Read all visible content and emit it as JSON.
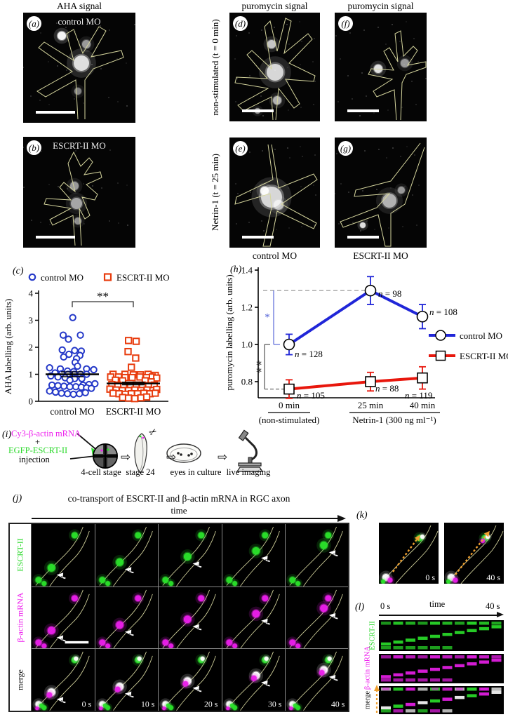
{
  "titles": {
    "aha": "AHA signal",
    "puromycin_left": "puromycin signal",
    "puromycin_right": "puromycin signal"
  },
  "micrographs": {
    "a": {
      "letter": "(a)",
      "label": "control MO"
    },
    "b": {
      "letter": "(b)",
      "label": "ESCRT-II MO"
    },
    "d": {
      "letter": "(d)"
    },
    "e": {
      "letter": "(e)"
    },
    "f": {
      "letter": "(f)"
    },
    "g": {
      "letter": "(g)"
    },
    "row1_label": "non-stimulated (t = 0 min)",
    "row2_label": "Netrin-1  (t = 25 min)",
    "caption_e": "control MO",
    "caption_g": "ESCRT-II MO"
  },
  "chart_data": [
    {
      "id": "c",
      "panel_letter": "(c)",
      "type": "scatter",
      "ylabel": "AHA labelling (arb. units)",
      "ylim": [
        0,
        4
      ],
      "yticks": [
        0,
        1,
        2,
        3,
        4
      ],
      "categories": [
        "control MO",
        "ESCRT-II MO"
      ],
      "significance": {
        "label": "**"
      },
      "series": [
        {
          "name": "control MO",
          "marker": "circle",
          "color": "#2438c8",
          "mean": 1.0,
          "sem": 0.09,
          "points": [
            [
              0.02,
              3.1
            ],
            [
              -0.38,
              2.45
            ],
            [
              0.34,
              2.45
            ],
            [
              -0.16,
              2.3
            ],
            [
              -0.42,
              1.9
            ],
            [
              0.1,
              1.88
            ],
            [
              0.38,
              1.86
            ],
            [
              -0.14,
              1.74
            ],
            [
              0.32,
              1.7
            ],
            [
              -0.36,
              1.64
            ],
            [
              0.18,
              1.58
            ],
            [
              0.12,
              1.44
            ],
            [
              0.22,
              1.3
            ],
            [
              -0.95,
              1.24
            ],
            [
              -0.5,
              1.2
            ],
            [
              0.6,
              1.2
            ],
            [
              0.9,
              1.17
            ],
            [
              -0.2,
              1.12
            ],
            [
              0.06,
              1.1
            ],
            [
              -0.72,
              1.05
            ],
            [
              -0.44,
              1.02
            ],
            [
              -0.18,
              1.0
            ],
            [
              0.08,
              1.0
            ],
            [
              0.34,
              1.0
            ],
            [
              0.6,
              1.0
            ],
            [
              -0.9,
              0.94
            ],
            [
              -0.6,
              0.9
            ],
            [
              -0.3,
              0.87
            ],
            [
              0.1,
              0.84
            ],
            [
              0.4,
              0.84
            ],
            [
              -0.1,
              0.78
            ],
            [
              0.95,
              0.65
            ],
            [
              0.7,
              0.62
            ],
            [
              0.45,
              0.6
            ],
            [
              -0.85,
              0.6
            ],
            [
              -0.6,
              0.58
            ],
            [
              -0.35,
              0.56
            ],
            [
              -0.1,
              0.54
            ],
            [
              0.15,
              0.54
            ],
            [
              0.38,
              0.52
            ],
            [
              0.6,
              0.5
            ],
            [
              0.8,
              0.48
            ],
            [
              -0.95,
              0.38
            ],
            [
              -0.7,
              0.34
            ],
            [
              -0.45,
              0.3
            ],
            [
              -0.2,
              0.28
            ],
            [
              0.05,
              0.26
            ],
            [
              0.3,
              0.28
            ],
            [
              0.55,
              0.32
            ]
          ]
        },
        {
          "name": "ESCRT-II MO",
          "marker": "square",
          "color": "#e83c0e",
          "mean": 0.66,
          "sem": 0.05,
          "points": [
            [
              -0.2,
              2.25
            ],
            [
              0.12,
              2.22
            ],
            [
              -0.22,
              1.84
            ],
            [
              0.1,
              1.6
            ],
            [
              -0.08,
              1.26
            ],
            [
              -0.85,
              1.0
            ],
            [
              -0.35,
              1.0
            ],
            [
              0.0,
              0.98
            ],
            [
              0.3,
              0.98
            ],
            [
              0.62,
              1.0
            ],
            [
              0.92,
              0.96
            ],
            [
              -0.95,
              0.9
            ],
            [
              -0.62,
              0.9
            ],
            [
              -0.35,
              0.88
            ],
            [
              -0.05,
              0.88
            ],
            [
              0.28,
              0.9
            ],
            [
              0.55,
              0.88
            ],
            [
              0.8,
              0.9
            ],
            [
              0.98,
              0.86
            ],
            [
              -0.75,
              0.78
            ],
            [
              -0.45,
              0.76
            ],
            [
              0.5,
              0.76
            ],
            [
              0.75,
              0.72
            ],
            [
              -0.9,
              0.62
            ],
            [
              -0.65,
              0.6
            ],
            [
              -0.4,
              0.58
            ],
            [
              -0.12,
              0.58
            ],
            [
              0.12,
              0.6
            ],
            [
              0.38,
              0.6
            ],
            [
              0.64,
              0.58
            ],
            [
              0.88,
              0.6
            ],
            [
              -0.98,
              0.45
            ],
            [
              -0.72,
              0.42
            ],
            [
              -0.46,
              0.4
            ],
            [
              -0.2,
              0.4
            ],
            [
              0.06,
              0.42
            ],
            [
              0.32,
              0.4
            ],
            [
              0.58,
              0.42
            ],
            [
              0.82,
              0.4
            ],
            [
              0.98,
              0.44
            ],
            [
              -0.85,
              0.3
            ],
            [
              -0.6,
              0.28
            ],
            [
              -0.34,
              0.26
            ],
            [
              -0.08,
              0.28
            ],
            [
              0.18,
              0.28
            ],
            [
              0.44,
              0.3
            ],
            [
              0.7,
              0.28
            ],
            [
              0.92,
              0.3
            ],
            [
              -0.45,
              0.14
            ],
            [
              -0.2,
              0.12
            ],
            [
              0.06,
              0.1
            ],
            [
              0.32,
              0.13
            ],
            [
              0.56,
              0.16
            ]
          ]
        }
      ]
    },
    {
      "id": "h",
      "panel_letter": "(h)",
      "type": "line",
      "ylabel": "puromycin labelling (arb. units)",
      "ylim": [
        0.72,
        1.4
      ],
      "yticks": [
        0.8,
        1.0,
        1.2,
        1.4
      ],
      "x_categories": [
        "0 min",
        "25 min",
        "40 min"
      ],
      "x_group_labels": [
        {
          "text": "(non-stimulated)"
        },
        {
          "text": "Netrin-1 (300 ng ml⁻¹)"
        }
      ],
      "series": [
        {
          "name": "control MO",
          "marker": "circle",
          "color": "#2026d8",
          "values": [
            1.0,
            1.29,
            1.15
          ],
          "errors": [
            0.055,
            0.075,
            0.065
          ],
          "n_labels": [
            "n = 128",
            "n = 98",
            "n = 108"
          ]
        },
        {
          "name": "ESCRT-II MO",
          "marker": "square",
          "color": "#e8170d",
          "values": [
            0.76,
            0.8,
            0.82
          ],
          "errors": [
            0.05,
            0.05,
            0.06
          ],
          "n_labels": [
            "n = 105",
            "n = 88",
            "n = 119"
          ]
        }
      ],
      "significance": [
        {
          "label": "*",
          "color": "#4b5bd6"
        },
        {
          "label": "**",
          "color": "#333333"
        }
      ]
    }
  ],
  "panel_i": {
    "letter": "(i)",
    "inject_line1": "Cy3-β-actin mRNA",
    "inject_plus": "+",
    "inject_line2": "EGFP-ESCRT-II",
    "inject_line3": "injection",
    "arrow_glyph": "⇨",
    "scissors_glyph": "✂",
    "steps": [
      "4-cell stage",
      "stage 24",
      "eyes in culture",
      "live imaging"
    ]
  },
  "panel_j": {
    "letter": "(j)",
    "title": "co-transport of ESCRT-II and β-actin mRNA in RGC axon",
    "time_axis": "time",
    "rows": [
      {
        "label": "ESCRT-II",
        "color": "#28d828"
      },
      {
        "label": "β-actin mRNA",
        "color": "#ee22ee"
      },
      {
        "label": "merge",
        "color": "#111111"
      }
    ],
    "times": [
      "0 s",
      "10 s",
      "20 s",
      "30 s",
      "40 s"
    ]
  },
  "panel_k": {
    "letter": "(k)",
    "times": [
      "0 s",
      "40 s"
    ]
  },
  "panel_l": {
    "letter": "(l)",
    "t_start": "0 s",
    "time_axis": "time",
    "t_end": "40 s",
    "rows": [
      {
        "label": "ESCRT-II",
        "color": "#28d828"
      },
      {
        "label": "β-actin mRNA",
        "color": "#ee22ee"
      },
      {
        "label": "merge",
        "color": "#111111"
      }
    ]
  }
}
